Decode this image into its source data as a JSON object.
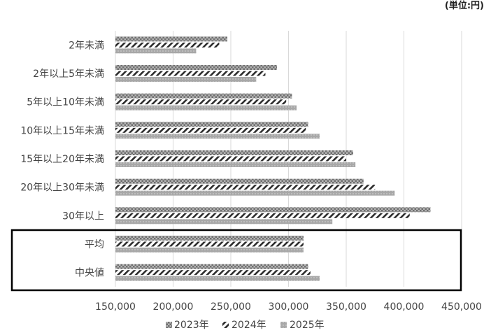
{
  "chart_data": {
    "type": "bar",
    "orientation": "horizontal",
    "unit_note": "(単位:円)",
    "categories": [
      "2年未満",
      "2年以上5年未満",
      "5年以上10年未満",
      "10年以上15年未満",
      "15年以上20年未満",
      "20年以上30年未満",
      "30年以上",
      "平均",
      "中央値"
    ],
    "series": [
      {
        "name": "2023年",
        "values": [
          247000,
          290000,
          303000,
          317000,
          356000,
          365000,
          423000,
          313000,
          317000
        ]
      },
      {
        "name": "2024年",
        "values": [
          240000,
          280000,
          298000,
          315000,
          350000,
          375000,
          405000,
          313000,
          319000
        ]
      },
      {
        "name": "2025年",
        "values": [
          220000,
          272000,
          307000,
          327000,
          358000,
          392000,
          338000,
          313000,
          327000
        ]
      }
    ],
    "xlim": [
      150000,
      450000
    ],
    "x_ticks": [
      "150,000",
      "200,000",
      "250,000",
      "300,000",
      "350,000",
      "400,000",
      "450,000"
    ],
    "x_tick_values": [
      150000,
      200000,
      250000,
      300000,
      350000,
      400000,
      450000
    ],
    "grid": "vertical",
    "legend_position": "bottom",
    "highlighted_categories": [
      "平均",
      "中央値"
    ],
    "colors": {
      "2023年": "#8c8c8c",
      "2024年": "#2b2b2b",
      "2025年": "#a8a8a8",
      "highlight_box": "#000000"
    }
  }
}
